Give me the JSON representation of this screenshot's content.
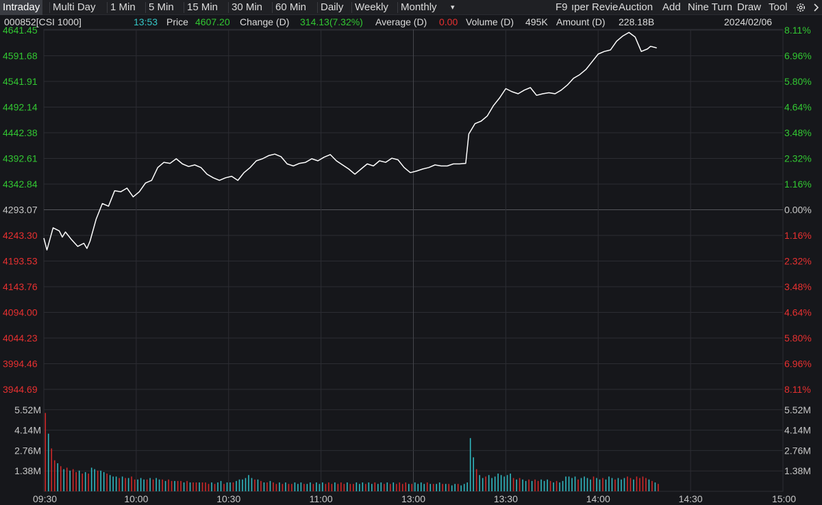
{
  "toolbar": {
    "period_tabs": [
      {
        "label": "Intraday",
        "active": true
      },
      {
        "label": "Multi Day"
      },
      {
        "label": "1 Min"
      },
      {
        "label": "5 Min"
      },
      {
        "label": "15 Min"
      },
      {
        "label": "30 Min"
      },
      {
        "label": "60 Min"
      },
      {
        "label": "Daily"
      },
      {
        "label": "Weekly"
      },
      {
        "label": "Monthly"
      }
    ],
    "more_glyph": "▾",
    "right_items": [
      {
        "label": "F9"
      },
      {
        "label": "ıper Revie"
      },
      {
        "label": "Auction"
      },
      {
        "label": "Add"
      },
      {
        "label": "Nine Turn"
      },
      {
        "label": "Draw"
      },
      {
        "label": "Tool"
      }
    ],
    "settings_icon": "gear-icon",
    "expand_icon": "chevron-right-icon"
  },
  "info": {
    "code": "000852[CSI 1000]",
    "time": "13:53",
    "price_label": "Price",
    "price_value": "4607.20",
    "change_label": "Change (D)",
    "change_value": "314.13(7.32%)",
    "average_label": "Average (D)",
    "average_value": "0.00",
    "volume_label": "Volume (D)",
    "volume_value": "495K",
    "amount_label": "Amount (D)",
    "amount_value": "228.18B",
    "date": "2024/02/06"
  },
  "colors": {
    "up": "#32c832",
    "down": "#e83030",
    "neutral": "#c8c8c8",
    "line": "#ffffff",
    "vol_up": "#30b8c0",
    "vol_down": "#d02828",
    "grid": "#2c2d33"
  },
  "chart_data": {
    "type": "line",
    "prev_close": 4293.07,
    "price_axis": [
      "4641.45",
      "4591.68",
      "4541.91",
      "4492.14",
      "4442.38",
      "4392.61",
      "4342.84",
      "4293.07",
      "4243.30",
      "4193.53",
      "4143.76",
      "4094.00",
      "4044.23",
      "3994.46",
      "3944.69"
    ],
    "pct_axis": [
      "8.11%",
      "6.96%",
      "5.80%",
      "4.64%",
      "3.48%",
      "2.32%",
      "1.16%",
      "0.00%",
      "1.16%",
      "2.32%",
      "3.48%",
      "4.64%",
      "5.80%",
      "6.96%",
      "8.11%"
    ],
    "ylim": [
      3944.69,
      4641.45
    ],
    "volume_axis": [
      "5.52M",
      "4.14M",
      "2.76M",
      "1.38M"
    ],
    "volume_ylim": [
      0,
      6.9
    ],
    "x_ticks": [
      "09:30",
      "10:00",
      "10:30",
      "11:00",
      "13:00",
      "13:30",
      "14:00",
      "14:30",
      "15:00"
    ],
    "time_minutes": [
      "09:30",
      "09:32",
      "09:35",
      "09:40",
      "09:45",
      "09:50",
      "09:55",
      "10:00",
      "10:05",
      "10:10",
      "10:15",
      "10:20",
      "10:25",
      "10:30",
      "10:35",
      "10:40",
      "10:45",
      "10:50",
      "10:55",
      "11:00",
      "11:05",
      "11:10",
      "11:15",
      "11:20",
      "11:25",
      "11:30",
      "13:05",
      "13:10",
      "13:15",
      "13:20",
      "13:25",
      "13:30",
      "13:35",
      "13:40",
      "13:45",
      "13:50",
      "13:53"
    ],
    "price_points": [
      [
        0,
        4238
      ],
      [
        1,
        4215
      ],
      [
        3,
        4258
      ],
      [
        5,
        4252
      ],
      [
        6,
        4240
      ],
      [
        7,
        4250
      ],
      [
        9,
        4235
      ],
      [
        11,
        4222
      ],
      [
        13,
        4228
      ],
      [
        14,
        4218
      ],
      [
        15,
        4232
      ],
      [
        17,
        4275
      ],
      [
        19,
        4305
      ],
      [
        21,
        4300
      ],
      [
        23,
        4330
      ],
      [
        25,
        4328
      ],
      [
        27,
        4335
      ],
      [
        29,
        4318
      ],
      [
        31,
        4328
      ],
      [
        33,
        4345
      ],
      [
        35,
        4350
      ],
      [
        37,
        4375
      ],
      [
        39,
        4385
      ],
      [
        41,
        4383
      ],
      [
        43,
        4392
      ],
      [
        45,
        4382
      ],
      [
        47,
        4377
      ],
      [
        49,
        4380
      ],
      [
        51,
        4375
      ],
      [
        53,
        4362
      ],
      [
        55,
        4355
      ],
      [
        57,
        4350
      ],
      [
        59,
        4355
      ],
      [
        61,
        4358
      ],
      [
        63,
        4350
      ],
      [
        65,
        4365
      ],
      [
        67,
        4375
      ],
      [
        69,
        4388
      ],
      [
        71,
        4392
      ],
      [
        73,
        4398
      ],
      [
        75,
        4401
      ],
      [
        77,
        4396
      ],
      [
        79,
        4382
      ],
      [
        81,
        4378
      ],
      [
        83,
        4383
      ],
      [
        85,
        4385
      ],
      [
        87,
        4392
      ],
      [
        89,
        4388
      ],
      [
        91,
        4395
      ],
      [
        93,
        4400
      ],
      [
        95,
        4388
      ],
      [
        97,
        4380
      ],
      [
        99,
        4372
      ],
      [
        101,
        4362
      ],
      [
        103,
        4372
      ],
      [
        105,
        4382
      ],
      [
        107,
        4378
      ],
      [
        109,
        4388
      ],
      [
        111,
        4385
      ],
      [
        113,
        4393
      ],
      [
        115,
        4390
      ],
      [
        117,
        4375
      ],
      [
        119,
        4365
      ],
      [
        121,
        4368
      ],
      [
        123,
        4372
      ],
      [
        125,
        4375
      ],
      [
        127,
        4380
      ],
      [
        129,
        4378
      ],
      [
        131,
        4378
      ],
      [
        133,
        4382
      ],
      [
        135,
        4382
      ],
      [
        137,
        4383
      ],
      [
        138,
        4440
      ],
      [
        140,
        4460
      ],
      [
        142,
        4465
      ],
      [
        144,
        4475
      ],
      [
        146,
        4495
      ],
      [
        148,
        4510
      ],
      [
        150,
        4528
      ],
      [
        152,
        4522
      ],
      [
        154,
        4518
      ],
      [
        156,
        4525
      ],
      [
        158,
        4530
      ],
      [
        160,
        4515
      ],
      [
        162,
        4518
      ],
      [
        164,
        4520
      ],
      [
        166,
        4518
      ],
      [
        168,
        4525
      ],
      [
        170,
        4535
      ],
      [
        172,
        4548
      ],
      [
        174,
        4555
      ],
      [
        176,
        4565
      ],
      [
        178,
        4580
      ],
      [
        180,
        4595
      ],
      [
        182,
        4600
      ],
      [
        184,
        4603
      ],
      [
        186,
        4620
      ],
      [
        188,
        4630
      ],
      [
        190,
        4637
      ],
      [
        192,
        4628
      ],
      [
        194,
        4600
      ],
      [
        196,
        4605
      ],
      [
        197,
        4610
      ],
      [
        199,
        4607
      ]
    ],
    "volume_bars": [
      [
        0,
        5.3,
        "down"
      ],
      [
        1,
        3.9,
        "up"
      ],
      [
        2,
        2.9,
        "down"
      ],
      [
        3,
        2.1,
        "down"
      ],
      [
        4,
        1.9,
        "up"
      ],
      [
        5,
        1.7,
        "down"
      ],
      [
        6,
        1.5,
        "up"
      ],
      [
        7,
        1.6,
        "down"
      ],
      [
        8,
        1.4,
        "up"
      ],
      [
        9,
        1.5,
        "down"
      ],
      [
        10,
        1.3,
        "down"
      ],
      [
        11,
        1.4,
        "up"
      ],
      [
        12,
        1.2,
        "down"
      ],
      [
        13,
        1.3,
        "up"
      ],
      [
        14,
        1.2,
        "down"
      ],
      [
        15,
        1.6,
        "up"
      ],
      [
        16,
        1.5,
        "up"
      ],
      [
        17,
        1.4,
        "down"
      ],
      [
        18,
        1.4,
        "up"
      ],
      [
        19,
        1.3,
        "up"
      ],
      [
        20,
        1.2,
        "down"
      ],
      [
        21,
        1.1,
        "up"
      ],
      [
        22,
        1.0,
        "up"
      ],
      [
        23,
        1.0,
        "up"
      ],
      [
        24,
        0.9,
        "down"
      ],
      [
        25,
        1.0,
        "up"
      ],
      [
        26,
        0.9,
        "down"
      ],
      [
        27,
        0.9,
        "up"
      ],
      [
        28,
        1.0,
        "down"
      ],
      [
        29,
        0.8,
        "down"
      ],
      [
        30,
        0.8,
        "up"
      ],
      [
        31,
        0.9,
        "up"
      ],
      [
        32,
        0.8,
        "up"
      ],
      [
        33,
        0.8,
        "down"
      ],
      [
        34,
        0.9,
        "up"
      ],
      [
        35,
        0.8,
        "down"
      ],
      [
        36,
        0.9,
        "up"
      ],
      [
        37,
        0.8,
        "up"
      ],
      [
        38,
        0.8,
        "down"
      ],
      [
        39,
        0.7,
        "up"
      ],
      [
        40,
        0.8,
        "down"
      ],
      [
        41,
        0.7,
        "down"
      ],
      [
        42,
        0.7,
        "up"
      ],
      [
        43,
        0.7,
        "down"
      ],
      [
        44,
        0.7,
        "down"
      ],
      [
        45,
        0.6,
        "up"
      ],
      [
        46,
        0.7,
        "down"
      ],
      [
        47,
        0.6,
        "up"
      ],
      [
        48,
        0.6,
        "down"
      ],
      [
        49,
        0.6,
        "down"
      ],
      [
        50,
        0.6,
        "up"
      ],
      [
        51,
        0.6,
        "down"
      ],
      [
        52,
        0.6,
        "down"
      ],
      [
        53,
        0.5,
        "down"
      ],
      [
        54,
        0.6,
        "up"
      ],
      [
        55,
        0.5,
        "down"
      ],
      [
        56,
        0.6,
        "up"
      ],
      [
        57,
        0.7,
        "up"
      ],
      [
        58,
        0.5,
        "down"
      ],
      [
        59,
        0.6,
        "up"
      ],
      [
        60,
        0.6,
        "up"
      ],
      [
        61,
        0.6,
        "down"
      ],
      [
        62,
        0.7,
        "up"
      ],
      [
        63,
        0.8,
        "up"
      ],
      [
        64,
        0.8,
        "up"
      ],
      [
        65,
        0.9,
        "up"
      ],
      [
        66,
        1.1,
        "up"
      ],
      [
        67,
        0.9,
        "up"
      ],
      [
        68,
        0.8,
        "down"
      ],
      [
        69,
        0.8,
        "up"
      ],
      [
        70,
        0.7,
        "down"
      ],
      [
        71,
        0.6,
        "up"
      ],
      [
        72,
        0.6,
        "down"
      ],
      [
        73,
        0.7,
        "up"
      ],
      [
        74,
        0.6,
        "down"
      ],
      [
        75,
        0.5,
        "down"
      ],
      [
        76,
        0.6,
        "up"
      ],
      [
        77,
        0.5,
        "down"
      ],
      [
        78,
        0.6,
        "up"
      ],
      [
        79,
        0.5,
        "down"
      ],
      [
        80,
        0.5,
        "down"
      ],
      [
        81,
        0.6,
        "up"
      ],
      [
        82,
        0.5,
        "up"
      ],
      [
        83,
        0.6,
        "up"
      ],
      [
        84,
        0.5,
        "down"
      ],
      [
        85,
        0.5,
        "up"
      ],
      [
        86,
        0.6,
        "up"
      ],
      [
        87,
        0.5,
        "down"
      ],
      [
        88,
        0.6,
        "up"
      ],
      [
        89,
        0.5,
        "up"
      ],
      [
        90,
        0.6,
        "up"
      ],
      [
        91,
        0.5,
        "down"
      ],
      [
        92,
        0.6,
        "down"
      ],
      [
        93,
        0.5,
        "down"
      ],
      [
        94,
        0.6,
        "up"
      ],
      [
        95,
        0.5,
        "down"
      ],
      [
        96,
        0.6,
        "down"
      ],
      [
        97,
        0.5,
        "down"
      ],
      [
        98,
        0.6,
        "up"
      ],
      [
        99,
        0.5,
        "down"
      ],
      [
        100,
        0.5,
        "down"
      ],
      [
        101,
        0.6,
        "up"
      ],
      [
        102,
        0.5,
        "up"
      ],
      [
        103,
        0.6,
        "up"
      ],
      [
        104,
        0.5,
        "down"
      ],
      [
        105,
        0.6,
        "up"
      ],
      [
        106,
        0.5,
        "up"
      ],
      [
        107,
        0.6,
        "down"
      ],
      [
        108,
        0.5,
        "up"
      ],
      [
        109,
        0.6,
        "up"
      ],
      [
        110,
        0.5,
        "down"
      ],
      [
        111,
        0.6,
        "up"
      ],
      [
        112,
        0.5,
        "down"
      ],
      [
        113,
        0.6,
        "up"
      ],
      [
        114,
        0.5,
        "down"
      ],
      [
        115,
        0.6,
        "down"
      ],
      [
        116,
        0.5,
        "down"
      ],
      [
        117,
        0.6,
        "down"
      ],
      [
        118,
        0.5,
        "up"
      ],
      [
        119,
        0.5,
        "down"
      ],
      [
        120,
        0.6,
        "up"
      ],
      [
        121,
        0.5,
        "up"
      ],
      [
        122,
        0.6,
        "up"
      ],
      [
        123,
        0.5,
        "up"
      ],
      [
        124,
        0.6,
        "down"
      ],
      [
        125,
        0.5,
        "up"
      ],
      [
        126,
        0.5,
        "down"
      ],
      [
        127,
        0.5,
        "up"
      ],
      [
        128,
        0.6,
        "up"
      ],
      [
        129,
        0.5,
        "down"
      ],
      [
        130,
        0.5,
        "up"
      ],
      [
        131,
        0.5,
        "down"
      ],
      [
        132,
        0.4,
        "up"
      ],
      [
        133,
        0.5,
        "up"
      ],
      [
        134,
        0.5,
        "down"
      ],
      [
        135,
        0.4,
        "up"
      ],
      [
        136,
        0.5,
        "up"
      ],
      [
        137,
        0.6,
        "up"
      ],
      [
        138,
        3.6,
        "up"
      ],
      [
        139,
        2.3,
        "up"
      ],
      [
        140,
        1.5,
        "down"
      ],
      [
        141,
        1.1,
        "up"
      ],
      [
        142,
        0.9,
        "up"
      ],
      [
        143,
        1.0,
        "down"
      ],
      [
        144,
        1.1,
        "up"
      ],
      [
        145,
        0.9,
        "up"
      ],
      [
        146,
        1.0,
        "up"
      ],
      [
        147,
        1.2,
        "up"
      ],
      [
        148,
        1.1,
        "up"
      ],
      [
        149,
        1.0,
        "up"
      ],
      [
        150,
        1.1,
        "up"
      ],
      [
        151,
        1.2,
        "up"
      ],
      [
        152,
        0.9,
        "down"
      ],
      [
        153,
        0.8,
        "up"
      ],
      [
        154,
        0.9,
        "down"
      ],
      [
        155,
        0.8,
        "up"
      ],
      [
        156,
        0.7,
        "up"
      ],
      [
        157,
        0.8,
        "down"
      ],
      [
        158,
        0.7,
        "up"
      ],
      [
        159,
        0.8,
        "down"
      ],
      [
        160,
        0.7,
        "down"
      ],
      [
        161,
        0.8,
        "up"
      ],
      [
        162,
        0.7,
        "up"
      ],
      [
        163,
        0.8,
        "up"
      ],
      [
        164,
        0.7,
        "down"
      ],
      [
        165,
        0.6,
        "up"
      ],
      [
        166,
        0.7,
        "down"
      ],
      [
        167,
        0.6,
        "up"
      ],
      [
        168,
        0.7,
        "up"
      ],
      [
        169,
        1.0,
        "up"
      ],
      [
        170,
        1.0,
        "up"
      ],
      [
        171,
        0.9,
        "up"
      ],
      [
        172,
        1.0,
        "up"
      ],
      [
        173,
        0.8,
        "down"
      ],
      [
        174,
        0.9,
        "up"
      ],
      [
        175,
        1.0,
        "up"
      ],
      [
        176,
        0.9,
        "up"
      ],
      [
        177,
        0.8,
        "up"
      ],
      [
        178,
        1.0,
        "down"
      ],
      [
        179,
        0.9,
        "up"
      ],
      [
        180,
        0.8,
        "up"
      ],
      [
        181,
        0.9,
        "down"
      ],
      [
        182,
        0.8,
        "up"
      ],
      [
        183,
        1.0,
        "up"
      ],
      [
        184,
        0.9,
        "up"
      ],
      [
        185,
        0.8,
        "down"
      ],
      [
        186,
        0.9,
        "up"
      ],
      [
        187,
        0.8,
        "up"
      ],
      [
        188,
        0.9,
        "up"
      ],
      [
        189,
        1.0,
        "down"
      ],
      [
        190,
        0.9,
        "down"
      ],
      [
        191,
        0.8,
        "up"
      ],
      [
        192,
        1.0,
        "down"
      ],
      [
        193,
        0.9,
        "down"
      ],
      [
        194,
        1.0,
        "down"
      ],
      [
        195,
        0.9,
        "down"
      ],
      [
        196,
        0.8,
        "up"
      ],
      [
        197,
        0.7,
        "down"
      ],
      [
        198,
        0.6,
        "up"
      ],
      [
        199,
        0.5,
        "down"
      ]
    ],
    "total_minutes": 240,
    "grid": true
  }
}
